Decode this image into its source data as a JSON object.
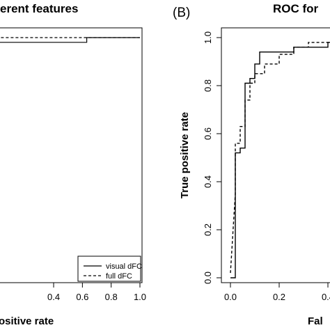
{
  "chart_data": [
    {
      "type": "line",
      "panel_label": "",
      "title": "erent features",
      "xlabel": "ositive rate",
      "ylabel": "",
      "xlim": [
        0,
        1
      ],
      "ylim": [
        0,
        1
      ],
      "x_ticks": [
        "0.4",
        "0.6",
        "0.8",
        "1.0"
      ],
      "y_ticks": [],
      "grid": false,
      "legend": {
        "position": "bottom-right",
        "entries": [
          "visual dFC",
          "full dFC"
        ]
      },
      "series": [
        {
          "name": "visual dFC",
          "style": "solid",
          "points": [
            [
              0.0,
              0.98
            ],
            [
              0.63,
              0.98
            ],
            [
              0.63,
              1.0
            ],
            [
              1.0,
              1.0
            ]
          ]
        },
        {
          "name": "full dFC",
          "style": "dashed",
          "points": [
            [
              0.0,
              1.0
            ],
            [
              1.0,
              1.0
            ]
          ]
        }
      ]
    },
    {
      "type": "line",
      "panel_label": "(B)",
      "title": "ROC for",
      "xlabel": "Fal",
      "ylabel": "True positive rate",
      "xlim": [
        0,
        0.7
      ],
      "ylim": [
        0,
        1
      ],
      "x_ticks": [
        "0.0",
        "0.2",
        "0.4"
      ],
      "y_ticks": [
        "0.0",
        "0.2",
        "0.4",
        "0.6",
        "0.8",
        "1.0"
      ],
      "grid": false,
      "series": [
        {
          "name": "visual dFC",
          "style": "solid",
          "points": [
            [
              0.0,
              0.0
            ],
            [
              0.02,
              0.0
            ],
            [
              0.02,
              0.52
            ],
            [
              0.04,
              0.52
            ],
            [
              0.04,
              0.54
            ],
            [
              0.06,
              0.54
            ],
            [
              0.06,
              0.81
            ],
            [
              0.08,
              0.81
            ],
            [
              0.08,
              0.83
            ],
            [
              0.1,
              0.83
            ],
            [
              0.1,
              0.89
            ],
            [
              0.12,
              0.89
            ],
            [
              0.12,
              0.94
            ],
            [
              0.2,
              0.94
            ],
            [
              0.2,
              0.94
            ],
            [
              0.26,
              0.94
            ],
            [
              0.26,
              0.96
            ],
            [
              0.4,
              0.96
            ],
            [
              0.4,
              0.98
            ],
            [
              0.7,
              0.98
            ]
          ]
        },
        {
          "name": "full dFC",
          "style": "dashed",
          "points": [
            [
              0.0,
              0.02
            ],
            [
              0.02,
              0.35
            ],
            [
              0.02,
              0.56
            ],
            [
              0.04,
              0.56
            ],
            [
              0.04,
              0.63
            ],
            [
              0.06,
              0.63
            ],
            [
              0.06,
              0.74
            ],
            [
              0.08,
              0.74
            ],
            [
              0.08,
              0.81
            ],
            [
              0.1,
              0.81
            ],
            [
              0.1,
              0.85
            ],
            [
              0.14,
              0.85
            ],
            [
              0.14,
              0.89
            ],
            [
              0.2,
              0.89
            ],
            [
              0.2,
              0.93
            ],
            [
              0.26,
              0.93
            ],
            [
              0.26,
              0.96
            ],
            [
              0.32,
              0.96
            ],
            [
              0.32,
              0.98
            ],
            [
              0.7,
              0.98
            ]
          ]
        }
      ]
    }
  ]
}
